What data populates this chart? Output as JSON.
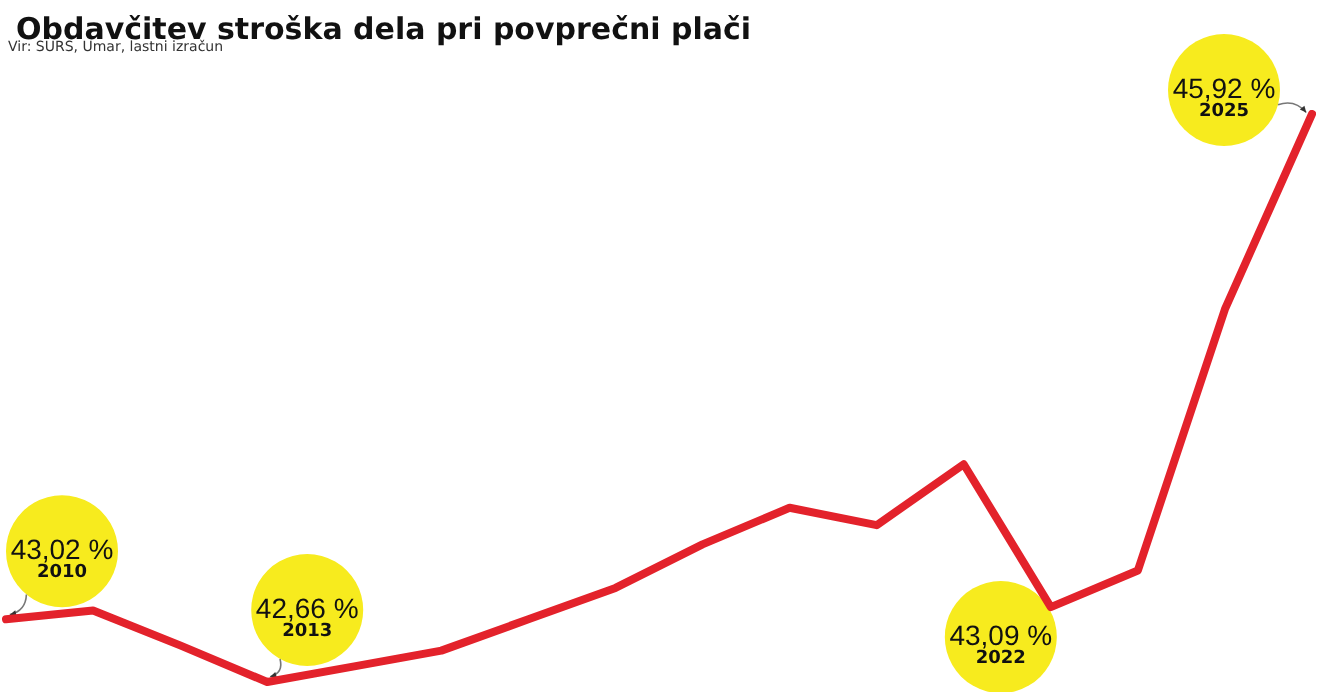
{
  "chart_data": {
    "type": "line",
    "title": "Obdavčitev stroška dela pri povprečni plači",
    "annotations": [
      "Vir: SURS, Umar, lastni izračun",
      "2010",
      "2013",
      "2022",
      "2025"
    ],
    "categories": [
      null,
      null,
      null,
      null,
      null,
      null,
      null,
      null,
      null,
      null,
      null,
      null,
      null,
      null,
      null,
      null
    ],
    "values": [
      43.02,
      43.07,
      42.87,
      42.66,
      42.75,
      42.84,
      43.02,
      43.2,
      43.45,
      43.66,
      43.56,
      43.91,
      43.09,
      43.3,
      44.8,
      45.92
    ],
    "value_labels": [
      "43,02 %",
      null,
      null,
      "42,66 %",
      null,
      null,
      null,
      null,
      null,
      null,
      null,
      null,
      "43,09 %",
      null,
      null,
      "45,92 %"
    ],
    "color": "#e3222b",
    "marker": "none",
    "line_style": "solid",
    "grid": false,
    "tick_labels": false
  }
}
